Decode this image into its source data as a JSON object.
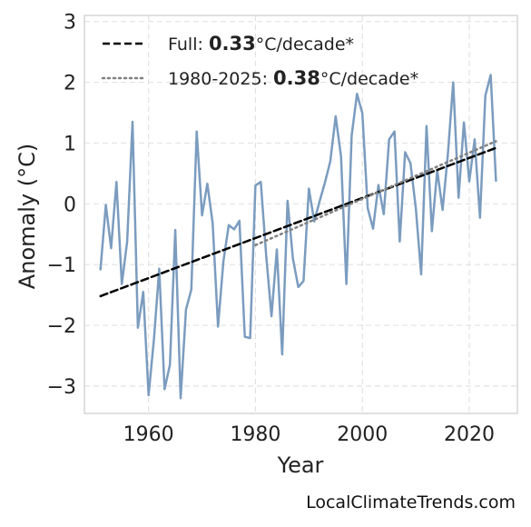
{
  "chart_data": {
    "type": "line",
    "xlabel": "Year",
    "ylabel": "Anomaly (°C)",
    "xlim": [
      1948,
      2029
    ],
    "ylim": [
      -3.45,
      3.1
    ],
    "x_ticks": [
      1960,
      1980,
      2000,
      2020
    ],
    "y_ticks": [
      3,
      2,
      1,
      0,
      -1,
      -2,
      -3
    ],
    "y_tick_labels": [
      "3",
      "2",
      "1",
      "0",
      "−1",
      "−2",
      "−3"
    ],
    "grid": true,
    "legend_position": "top-left",
    "series": [
      {
        "color": "#7b9cbf",
        "x": [
          1951,
          1952,
          1953,
          1954,
          1955,
          1956,
          1957,
          1958,
          1959,
          1960,
          1961,
          1962,
          1963,
          1964,
          1965,
          1966,
          1967,
          1968,
          1969,
          1970,
          1971,
          1972,
          1973,
          1974,
          1975,
          1976,
          1977,
          1978,
          1979,
          1980,
          1981,
          1982,
          1983,
          1984,
          1985,
          1986,
          1987,
          1988,
          1989,
          1990,
          1991,
          1992,
          1993,
          1994,
          1995,
          1996,
          1997,
          1998,
          1999,
          2000,
          2001,
          2002,
          2003,
          2004,
          2005,
          2006,
          2007,
          2008,
          2009,
          2010,
          2011,
          2012,
          2013,
          2014,
          2015,
          2016,
          2017,
          2018,
          2019,
          2020,
          2021,
          2022,
          2023,
          2024,
          2025
        ],
        "y": [
          -1.08,
          -0.02,
          -0.73,
          0.36,
          -1.32,
          -0.62,
          1.35,
          -2.04,
          -1.45,
          -3.15,
          -2.23,
          -1.07,
          -3.05,
          -2.65,
          -0.43,
          -3.2,
          -1.74,
          -1.41,
          1.19,
          -0.19,
          0.33,
          -0.32,
          -2.02,
          -0.95,
          -0.35,
          -0.42,
          -0.28,
          -2.19,
          -2.21,
          0.3,
          0.36,
          -0.84,
          -1.85,
          -0.75,
          -2.48,
          0.05,
          -0.9,
          -1.37,
          -1.27,
          0.25,
          -0.29,
          0.04,
          0.35,
          0.7,
          1.44,
          0.78,
          -1.32,
          1.12,
          1.81,
          1.49,
          -0.07,
          -0.41,
          0.31,
          -0.17,
          1.06,
          1.19,
          -0.62,
          0.85,
          0.67,
          -0.07,
          -1.16,
          1.28,
          -0.45,
          0.55,
          -0.1,
          0.81,
          2.0,
          0.1,
          1.34,
          0.37,
          1.06,
          -0.23,
          1.78,
          2.12,
          0.38
        ]
      },
      {
        "name": "Full",
        "color": "#000000",
        "style": "dashed",
        "x": [
          1951,
          2025
        ],
        "y": [
          -1.52,
          0.92
        ]
      },
      {
        "name": "1980-2025",
        "color": "#808080",
        "style": "dotted",
        "x": [
          1980,
          2025
        ],
        "y": [
          -0.68,
          1.03
        ]
      }
    ],
    "legend": [
      {
        "prefix": "Full: ",
        "value": "0.33",
        "suffix": "°C/decade*",
        "style": "dashed",
        "color": "#000000"
      },
      {
        "prefix": "1980-2025: ",
        "value": "0.38",
        "suffix": "°C/decade*",
        "style": "dotted",
        "color": "#808080"
      }
    ]
  },
  "credit": "LocalClimateTrends.com"
}
